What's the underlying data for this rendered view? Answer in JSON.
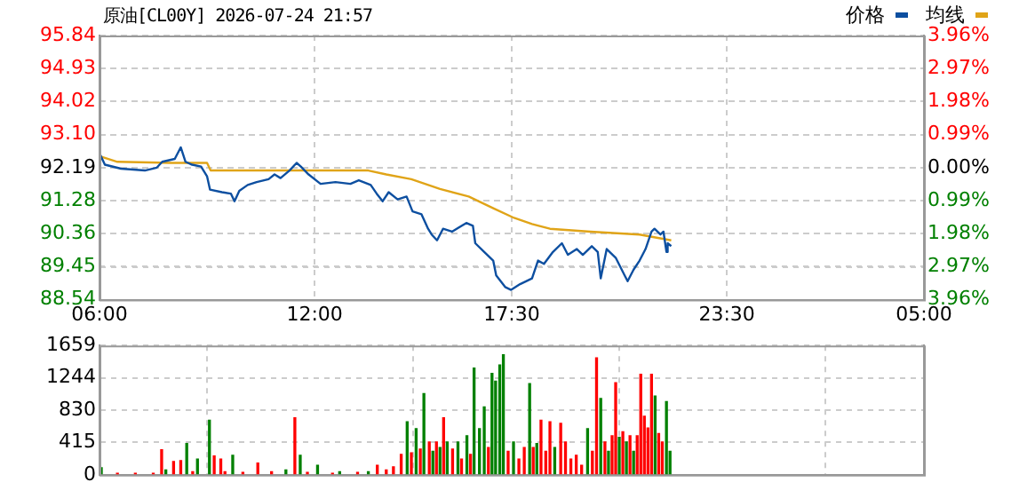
{
  "chart_data": [
    {
      "type": "line",
      "title": "原油[CL00Y] 2026-07-24 21:57",
      "xlim": [
        "2026-07-24T06:00",
        "2026-07-25T05:00"
      ],
      "xticks": [
        {
          "value": "2026-07-24T06:00",
          "label": "06:00"
        },
        {
          "value": "2026-07-24T12:00",
          "label": "12:00"
        },
        {
          "value": "2026-07-24T17:30",
          "label": "17:30"
        },
        {
          "value": "2026-07-24T23:30",
          "label": "23:30"
        },
        {
          "value": "2026-07-25T05:00",
          "label": "05:00"
        }
      ],
      "ylim": [
        88.54,
        95.84
      ],
      "yticks": [
        88.54,
        89.45,
        90.36,
        91.28,
        92.19,
        {
          "value": 93.1,
          "label": "93.10"
        },
        94.02,
        94.93,
        95.84
      ],
      "y2lim": [
        -3.96,
        3.96
      ],
      "y2ticks": [
        {
          "value": -3.96,
          "label": "3.96%"
        },
        {
          "value": -2.97,
          "label": "2.97%"
        },
        {
          "value": -1.98,
          "label": "1.98%"
        },
        {
          "value": -0.99,
          "label": "0.99%"
        },
        {
          "value": 0,
          "label": "0.00%"
        },
        {
          "value": 0.99,
          "label": "0.99%"
        },
        {
          "value": 1.98,
          "label": "1.98%"
        },
        {
          "value": 2.97,
          "label": "2.97%"
        },
        {
          "value": 3.96,
          "label": "3.96%"
        }
      ],
      "grid": true,
      "legend": "top right",
      "marker": "none",
      "line_style": "solid",
      "series": [
        {
          "name": "价格",
          "color": "#0d4fa0",
          "x": [
            "2026-07-24T06:01",
            "2026-07-24T06:09",
            "2026-07-24T06:36",
            "2026-07-24T07:16",
            "2026-07-24T07:36",
            "2026-07-24T07:45",
            "2026-07-24T08:06",
            "2026-07-24T08:16",
            "2026-07-24T08:24",
            "2026-07-24T08:35",
            "2026-07-24T08:50",
            "2026-07-24T09:00",
            "2026-07-24T09:05",
            "2026-07-24T09:25",
            "2026-07-24T09:40",
            "2026-07-24T09:46",
            "2026-07-24T09:54",
            "2026-07-24T10:08",
            "2026-07-24T10:23",
            "2026-07-24T10:43",
            "2026-07-24T10:53",
            "2026-07-24T11:03",
            "2026-07-24T11:18",
            "2026-07-24T11:30",
            "2026-07-24T11:37",
            "2026-07-24T11:50",
            "2026-07-24T12:10",
            "2026-07-24T12:35",
            "2026-07-24T13:00",
            "2026-07-24T13:14",
            "2026-07-24T13:34",
            "2026-07-24T13:44",
            "2026-07-24T13:54",
            "2026-07-24T14:04",
            "2026-07-24T14:19",
            "2026-07-24T14:34",
            "2026-07-24T14:44",
            "2026-07-24T14:59",
            "2026-07-24T15:10",
            "2026-07-24T15:16",
            "2026-07-24T15:25",
            "2026-07-24T15:35",
            "2026-07-24T15:50",
            "2026-07-24T16:14",
            "2026-07-24T16:25",
            "2026-07-24T16:29",
            "2026-07-24T16:44",
            "2026-07-24T16:59",
            "2026-07-24T17:04",
            "2026-07-24T17:19",
            "2026-07-24T17:29",
            "2026-07-24T17:44",
            "2026-07-24T18:04",
            "2026-07-24T18:14",
            "2026-07-24T18:24",
            "2026-07-24T18:39",
            "2026-07-24T18:54",
            "2026-07-24T19:04",
            "2026-07-24T19:19",
            "2026-07-24T19:29",
            "2026-07-24T19:44",
            "2026-07-24T19:54",
            "2026-07-24T19:59",
            "2026-07-24T20:09",
            "2026-07-24T20:24",
            "2026-07-24T20:39",
            "2026-07-24T20:44",
            "2026-07-24T20:54",
            "2026-07-24T21:04",
            "2026-07-24T21:14",
            "2026-07-24T21:24",
            "2026-07-24T21:29",
            "2026-07-24T21:39",
            "2026-07-24T21:44",
            "2026-07-24T21:49",
            "2026-07-24T21:51",
            "2026-07-24T21:57"
          ],
          "values": [
            92.55,
            92.27,
            92.16,
            92.11,
            92.19,
            92.35,
            92.43,
            92.75,
            92.35,
            92.27,
            92.22,
            91.95,
            91.58,
            91.51,
            91.47,
            91.26,
            91.55,
            91.71,
            91.79,
            91.87,
            92.0,
            91.9,
            92.11,
            92.32,
            92.22,
            92.0,
            91.74,
            91.79,
            91.74,
            91.84,
            91.71,
            91.47,
            91.26,
            91.51,
            91.31,
            91.39,
            90.98,
            90.9,
            90.5,
            90.34,
            90.18,
            90.5,
            90.42,
            90.66,
            90.58,
            90.1,
            89.86,
            89.62,
            89.21,
            88.89,
            88.81,
            88.97,
            89.13,
            89.62,
            89.53,
            89.86,
            90.1,
            89.78,
            89.94,
            89.78,
            90.02,
            89.86,
            89.13,
            89.94,
            89.7,
            89.21,
            89.05,
            89.37,
            89.62,
            89.94,
            90.42,
            90.5,
            90.34,
            90.42,
            89.86,
            90.1,
            90.02
          ]
        },
        {
          "name": "均线",
          "color": "#e0a418",
          "x": [
            "2026-07-24T06:01",
            "2026-07-24T06:30",
            "2026-07-24T08:00",
            "2026-07-24T09:00",
            "2026-07-24T09:06",
            "2026-07-24T13:30",
            "2026-07-24T14:00",
            "2026-07-24T14:42",
            "2026-07-24T15:30",
            "2026-07-24T16:18",
            "2026-07-24T17:00",
            "2026-07-24T17:34",
            "2026-07-24T18:04",
            "2026-07-24T18:34",
            "2026-07-24T19:42",
            "2026-07-24T21:04",
            "2026-07-24T21:57"
          ],
          "values": [
            92.5,
            92.35,
            92.32,
            92.32,
            92.11,
            92.11,
            92.0,
            91.87,
            91.6,
            91.39,
            91.06,
            90.8,
            90.63,
            90.5,
            90.42,
            90.34,
            90.18
          ]
        }
      ]
    },
    {
      "type": "bar",
      "tick_labels": "y",
      "grid": true,
      "xlim": [
        "2026-07-24T06:00",
        "2026-07-25T05:00"
      ],
      "xticks": [
        {
          "value": "2026-07-24T06:00",
          "label": null
        },
        {
          "value": "2026-07-24T12:00",
          "label": null
        },
        {
          "value": "2026-07-24T17:30",
          "label": null
        },
        {
          "value": "2026-07-24T23:30",
          "label": null
        },
        {
          "value": "2026-07-25T05:00",
          "label": null
        }
      ],
      "ylim": [
        0,
        1659
      ],
      "yticks": [
        0,
        415,
        830,
        1244,
        1659
      ],
      "x": [
        "2026-07-24T06:03",
        "2026-07-24T06:30",
        "2026-07-24T07:00",
        "2026-07-24T07:30",
        "2026-07-24T07:44",
        "2026-07-24T07:51",
        "2026-07-24T08:04",
        "2026-07-24T08:16",
        "2026-07-24T08:26",
        "2026-07-24T08:36",
        "2026-07-24T08:44",
        "2026-07-24T09:04",
        "2026-07-24T09:12",
        "2026-07-24T09:23",
        "2026-07-24T09:30",
        "2026-07-24T09:43",
        "2026-07-24T10:00",
        "2026-07-24T10:25",
        "2026-07-24T10:48",
        "2026-07-24T11:12",
        "2026-07-24T11:27",
        "2026-07-24T11:36",
        "2026-07-24T11:48",
        "2026-07-24T12:05",
        "2026-07-24T12:30",
        "2026-07-24T12:42",
        "2026-07-24T13:12",
        "2026-07-24T13:30",
        "2026-07-24T13:45",
        "2026-07-24T14:00",
        "2026-07-24T14:12",
        "2026-07-24T14:25",
        "2026-07-24T14:35",
        "2026-07-24T14:42",
        "2026-07-24T14:50",
        "2026-07-24T14:57",
        "2026-07-24T15:03",
        "2026-07-24T15:12",
        "2026-07-24T15:18",
        "2026-07-24T15:24",
        "2026-07-24T15:30",
        "2026-07-24T15:36",
        "2026-07-24T15:42",
        "2026-07-24T15:51",
        "2026-07-24T16:00",
        "2026-07-24T16:06",
        "2026-07-24T16:15",
        "2026-07-24T16:21",
        "2026-07-24T16:27",
        "2026-07-24T16:36",
        "2026-07-24T16:44",
        "2026-07-24T16:51",
        "2026-07-24T16:57",
        "2026-07-24T17:03",
        "2026-07-24T17:10",
        "2026-07-24T17:16",
        "2026-07-24T17:24",
        "2026-07-24T17:33",
        "2026-07-24T17:42",
        "2026-07-24T17:51",
        "2026-07-24T18:00",
        "2026-07-24T18:06",
        "2026-07-24T18:12",
        "2026-07-24T18:19",
        "2026-07-24T18:27",
        "2026-07-24T18:34",
        "2026-07-24T18:42",
        "2026-07-24T18:52",
        "2026-07-24T19:00",
        "2026-07-24T19:09",
        "2026-07-24T19:18",
        "2026-07-24T19:27",
        "2026-07-24T19:37",
        "2026-07-24T19:45",
        "2026-07-24T19:52",
        "2026-07-24T19:59",
        "2026-07-24T20:06",
        "2026-07-24T20:12",
        "2026-07-24T20:18",
        "2026-07-24T20:24",
        "2026-07-24T20:30",
        "2026-07-24T20:36",
        "2026-07-24T20:42",
        "2026-07-24T20:48",
        "2026-07-24T20:54",
        "2026-07-24T21:00",
        "2026-07-24T21:06",
        "2026-07-24T21:12",
        "2026-07-24T21:18",
        "2026-07-24T21:24",
        "2026-07-24T21:30",
        "2026-07-24T21:36",
        "2026-07-24T21:42",
        "2026-07-24T21:49",
        "2026-07-24T21:55"
      ],
      "values": [
        90,
        20,
        20,
        20,
        320,
        60,
        170,
        180,
        400,
        40,
        200,
        700,
        240,
        200,
        40,
        250,
        30,
        150,
        40,
        60,
        730,
        250,
        30,
        120,
        20,
        40,
        30,
        40,
        120,
        60,
        100,
        260,
        680,
        280,
        590,
        330,
        1040,
        420,
        300,
        420,
        350,
        730,
        420,
        330,
        420,
        200,
        500,
        260,
        1370,
        590,
        870,
        350,
        1300,
        1200,
        1410,
        1540,
        300,
        420,
        200,
        350,
        1170,
        350,
        400,
        700,
        300,
        680,
        350,
        660,
        420,
        200,
        250,
        120,
        590,
        300,
        1500,
        980,
        420,
        300,
        500,
        1180,
        480,
        550,
        420,
        500,
        300,
        500,
        1290,
        750,
        600,
        1290,
        1010,
        530,
        420,
        940,
        300
      ],
      "colors": [
        "#008000",
        "#ff0000",
        "#ff0000",
        "#ff0000",
        "#ff0000",
        "#008000",
        "#ff0000",
        "#ff0000",
        "#008000",
        "#ff0000",
        "#008000",
        "#008000",
        "#ff0000",
        "#ff0000",
        "#ff0000",
        "#008000",
        "#ff0000",
        "#ff0000",
        "#ff0000",
        "#008000",
        "#ff0000",
        "#008000",
        "#ff0000",
        "#008000",
        "#ff0000",
        "#008000",
        "#ff0000",
        "#008000",
        "#ff0000",
        "#ff0000",
        "#ff0000",
        "#ff0000",
        "#008000",
        "#ff0000",
        "#008000",
        "#ff0000",
        "#008000",
        "#ff0000",
        "#008000",
        "#ff0000",
        "#008000",
        "#ff0000",
        "#008000",
        "#ff0000",
        "#008000",
        "#ff0000",
        "#008000",
        "#ff0000",
        "#008000",
        "#008000",
        "#008000",
        "#ff0000",
        "#008000",
        "#008000",
        "#008000",
        "#008000",
        "#ff0000",
        "#008000",
        "#ff0000",
        "#ff0000",
        "#008000",
        "#ff0000",
        "#008000",
        "#ff0000",
        "#ff0000",
        "#ff0000",
        "#008000",
        "#ff0000",
        "#ff0000",
        "#ff0000",
        "#ff0000",
        "#ff0000",
        "#008000",
        "#ff0000",
        "#ff0000",
        "#008000",
        "#ff0000",
        "#008000",
        "#ff0000",
        "#ff0000",
        "#008000",
        "#ff0000",
        "#008000",
        "#ff0000",
        "#008000",
        "#ff0000",
        "#ff0000",
        "#ff0000",
        "#ff0000",
        "#ff0000",
        "#008000",
        "#ff0000",
        "#ff0000",
        "#008000",
        "#008000"
      ]
    }
  ]
}
